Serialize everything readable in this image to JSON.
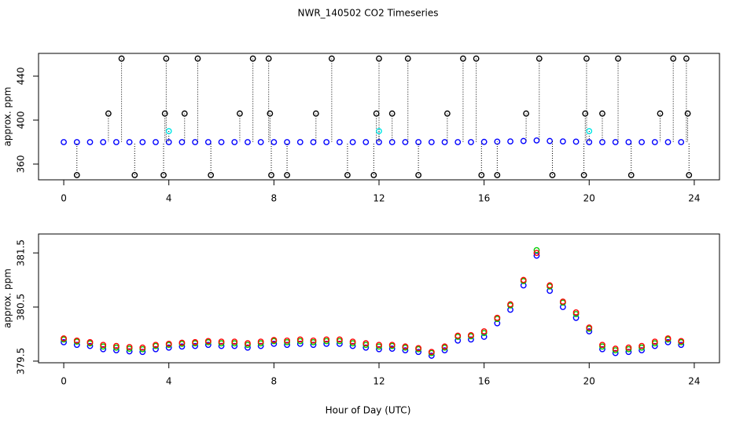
{
  "title": "NWR_140502  CO2 Timeseries",
  "x_label": "Hour of Day (UTC)",
  "chart_data": [
    {
      "type": "scatter",
      "y_label": "approx. ppm",
      "xlim": [
        -0.96,
        24.96
      ],
      "xticks": [
        0,
        4,
        8,
        12,
        16,
        20,
        24
      ],
      "ylim": [
        345.7,
        460.7
      ],
      "yticks": [
        360,
        400,
        440
      ],
      "series": [
        {
          "color": "#0000ff",
          "x": [
            0,
            0.5,
            1,
            1.5,
            2,
            2.5,
            3,
            3.5,
            4,
            4.5,
            5,
            5.5,
            6,
            6.5,
            7,
            7.5,
            8,
            8.5,
            9,
            9.5,
            10,
            10.5,
            11,
            11.5,
            12,
            12.5,
            13,
            13.5,
            14,
            14.5,
            15,
            15.5,
            16,
            16.5,
            17,
            17.5,
            18,
            18.5,
            19,
            19.5,
            20,
            20.5,
            21,
            21.5,
            22,
            22.5,
            23,
            23.5
          ],
          "values": [
            380,
            380,
            380,
            380,
            380,
            380,
            380,
            380,
            380,
            380,
            380,
            380,
            380,
            380,
            380,
            380,
            380,
            380,
            380,
            380,
            380,
            380,
            380,
            380,
            380,
            380,
            380,
            380,
            380,
            380,
            380,
            380,
            380.2,
            380.4,
            380.6,
            381,
            381.5,
            381,
            380.6,
            380.4,
            380,
            380,
            380,
            380,
            380,
            380,
            380,
            380
          ]
        },
        {
          "color": "#000000",
          "x": [
            0.5,
            1.7,
            2.2,
            2.7,
            3.8,
            3.85,
            3.9,
            4.6,
            5.1,
            5.6,
            6.7,
            7.2,
            7.8,
            7.85,
            7.9,
            8.5,
            9.6,
            10.2,
            10.8,
            11.8,
            11.9,
            12,
            12.5,
            13.1,
            13.5,
            14.6,
            15.2,
            15.7,
            15.9,
            16.5,
            17.6,
            18.1,
            18.6,
            19.8,
            19.85,
            19.9,
            20.5,
            21.1,
            21.6,
            22.7,
            23.2,
            23.7,
            23.75,
            23.8
          ],
          "values": [
            350,
            406,
            456,
            350,
            350,
            406,
            456,
            406,
            456,
            350,
            406,
            456,
            456,
            406,
            350,
            350,
            406,
            456,
            350,
            350,
            406,
            456,
            406,
            456,
            350,
            406,
            456,
            456,
            350,
            350,
            406,
            456,
            350,
            350,
            406,
            456,
            406,
            456,
            350,
            406,
            456,
            456,
            406,
            350
          ]
        },
        {
          "color": "#00e5e5",
          "x": [
            4,
            12,
            20
          ],
          "values": [
            390,
            390,
            390
          ]
        }
      ]
    },
    {
      "type": "scatter",
      "y_label": "approx. ppm",
      "xlim": [
        -0.96,
        24.96
      ],
      "xticks": [
        0,
        4,
        8,
        12,
        16,
        20,
        24
      ],
      "ylim": [
        379.47,
        381.85
      ],
      "yticks": [
        379.5,
        380.5,
        381.5
      ],
      "series": [
        {
          "color": "#0000ff",
          "x": [
            0,
            0.5,
            1,
            1.5,
            2,
            2.5,
            3,
            3.5,
            4,
            4.5,
            5,
            5.5,
            6,
            6.5,
            7,
            7.5,
            8,
            8.5,
            9,
            9.5,
            10,
            10.5,
            11,
            11.5,
            12,
            12.5,
            13,
            13.5,
            14,
            14.5,
            15,
            15.5,
            16,
            16.5,
            17,
            17.5,
            18,
            18.5,
            19,
            19.5,
            20,
            20.5,
            21,
            21.5,
            22,
            22.5,
            23,
            23.5
          ],
          "values": [
            379.85,
            379.8,
            379.78,
            379.72,
            379.7,
            379.68,
            379.67,
            379.72,
            379.75,
            379.77,
            379.78,
            379.8,
            379.78,
            379.78,
            379.75,
            379.78,
            379.82,
            379.8,
            379.82,
            379.8,
            379.82,
            379.82,
            379.78,
            379.75,
            379.72,
            379.73,
            379.7,
            379.67,
            379.6,
            379.7,
            379.88,
            379.9,
            379.95,
            380.2,
            380.45,
            380.9,
            381.45,
            380.8,
            380.5,
            380.3,
            380.05,
            379.72,
            379.65,
            379.67,
            379.7,
            379.78,
            379.85,
            379.8
          ]
        },
        {
          "color": "#00cc00",
          "x": [
            0,
            0.5,
            1,
            1.5,
            2,
            2.5,
            3,
            3.5,
            4,
            4.5,
            5,
            5.5,
            6,
            6.5,
            7,
            7.5,
            8,
            8.5,
            9,
            9.5,
            10,
            10.5,
            11,
            11.5,
            12,
            12.5,
            13,
            13.5,
            14,
            14.5,
            15,
            15.5,
            16,
            16.5,
            17,
            17.5,
            18,
            18.5,
            19,
            19.5,
            20,
            20.5,
            21,
            21.5,
            22,
            22.5,
            23,
            23.5
          ],
          "values": [
            379.9,
            379.86,
            379.83,
            379.77,
            379.75,
            379.73,
            379.72,
            379.78,
            379.8,
            379.82,
            379.83,
            379.85,
            379.83,
            379.83,
            379.8,
            379.83,
            379.87,
            379.85,
            379.87,
            379.85,
            379.87,
            379.87,
            379.83,
            379.8,
            379.77,
            379.78,
            379.75,
            379.72,
            379.65,
            379.75,
            379.95,
            379.96,
            380.02,
            380.28,
            380.53,
            380.98,
            381.55,
            380.88,
            380.58,
            380.37,
            380.1,
            379.77,
            379.7,
            379.72,
            379.75,
            379.83,
            379.9,
            379.85
          ]
        },
        {
          "color": "#ff0000",
          "x": [
            0,
            0.5,
            1,
            1.5,
            2,
            2.5,
            3,
            3.5,
            4,
            4.5,
            5,
            5.5,
            6,
            6.5,
            7,
            7.5,
            8,
            8.5,
            9,
            9.5,
            10,
            10.5,
            11,
            11.5,
            12,
            12.5,
            13,
            13.5,
            14,
            14.5,
            15,
            15.5,
            16,
            16.5,
            17,
            17.5,
            18,
            18.5,
            19,
            19.5,
            20,
            20.5,
            21,
            21.5,
            22,
            22.5,
            23,
            23.5
          ],
          "values": [
            379.92,
            379.88,
            379.85,
            379.8,
            379.78,
            379.76,
            379.75,
            379.8,
            379.82,
            379.84,
            379.85,
            379.87,
            379.86,
            379.86,
            379.83,
            379.86,
            379.89,
            379.88,
            379.9,
            379.88,
            379.9,
            379.9,
            379.86,
            379.83,
            379.8,
            379.8,
            379.77,
            379.74,
            379.67,
            379.77,
            379.97,
            379.98,
            380.05,
            380.3,
            380.55,
            381,
            381.5,
            380.9,
            380.6,
            380.4,
            380.12,
            379.8,
            379.73,
            379.75,
            379.78,
            379.86,
            379.92,
            379.87
          ]
        }
      ]
    }
  ]
}
